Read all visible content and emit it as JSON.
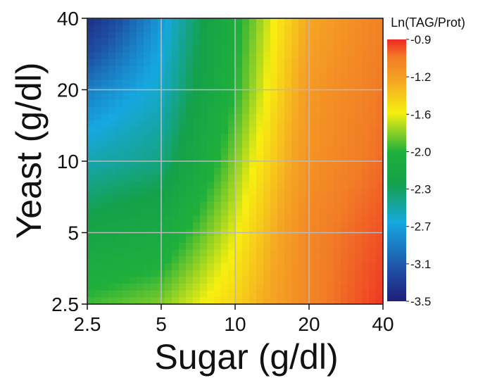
{
  "chart_data": {
    "type": "heatmap",
    "title": "",
    "xlabel": "Sugar (g/dl)",
    "ylabel": "Yeast (g/dl)",
    "x_scale": "log2",
    "y_scale": "log2",
    "xlim": [
      2.5,
      40
    ],
    "ylim": [
      2.5,
      40
    ],
    "x_ticks": [
      "2.5",
      "5",
      "10",
      "20",
      "40"
    ],
    "y_ticks": [
      "2.5",
      "5",
      "10",
      "20",
      "40"
    ],
    "grid": true,
    "colorbar": {
      "title": "Ln(TAG/Prot)",
      "ticks": [
        "-0.9",
        "-1.2",
        "-1.6",
        "-2.0",
        "-2.3",
        "-2.7",
        "-3.1",
        "-3.5"
      ],
      "range": [
        -3.5,
        -0.9
      ],
      "colors": [
        "#1f1f7a",
        "#1e4fa3",
        "#16a8e0",
        "#14a14a",
        "#1fb03c",
        "#f7ef10",
        "#f5a623",
        "#f27d26",
        "#ee2a24"
      ]
    },
    "x": [
      2.5,
      5,
      10,
      20,
      40
    ],
    "y": [
      40,
      20,
      10,
      5,
      2.5
    ],
    "z": [
      [
        -3.4,
        -2.9,
        -2.25,
        -1.55,
        -1.25
      ],
      [
        -3.0,
        -2.8,
        -2.2,
        -1.45,
        -1.2
      ],
      [
        -2.75,
        -2.65,
        -2.05,
        -1.4,
        -1.15
      ],
      [
        -2.45,
        -2.35,
        -1.9,
        -1.3,
        -1.05
      ],
      [
        -2.15,
        -2.05,
        -1.75,
        -1.3,
        -0.95
      ]
    ]
  }
}
